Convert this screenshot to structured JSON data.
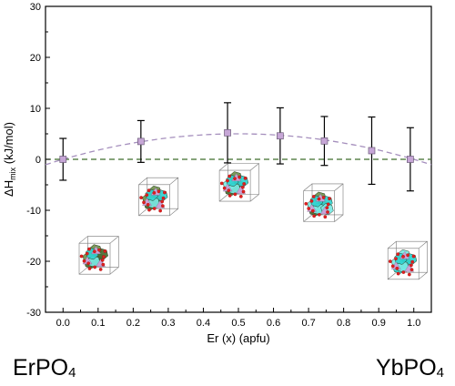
{
  "chart_data": {
    "type": "scatter",
    "xlabel": "Er (x) (apfu)",
    "ylabel_main": "ΔH",
    "ylabel_sub": "mix",
    "ylabel_unit": " (kJ/mol)",
    "xlim": [
      -0.05,
      1.05
    ],
    "ylim": [
      -30,
      30
    ],
    "x_ticks": [
      "0.0",
      "0.1",
      "0.2",
      "0.3",
      "0.4",
      "0.5",
      "0.6",
      "0.7",
      "0.8",
      "0.9",
      "1.0"
    ],
    "y_ticks": [
      "-30",
      "-20",
      "-10",
      "0",
      "10",
      "20",
      "30"
    ],
    "series": [
      {
        "x": [
          0.0,
          0.222,
          0.469,
          0.619,
          0.745,
          0.88,
          0.99
        ],
        "y": [
          0.0,
          3.5,
          5.2,
          4.6,
          3.6,
          1.7,
          0.0
        ],
        "yerr": [
          4.1,
          4.1,
          5.9,
          5.5,
          4.8,
          6.6,
          6.2
        ],
        "marker_color": "#c6a6d6"
      }
    ],
    "fit_curve": {
      "style": "dashed",
      "color": "#a58fbd",
      "peak": 5.0
    },
    "zero_line": {
      "style": "dashed",
      "color": "#3f6e2a"
    },
    "grid": false
  },
  "labels": {
    "left_main": "ErPO",
    "left_sub": "4",
    "right_main": "YbPO",
    "right_sub": "4"
  },
  "crystals": [
    {
      "name": "crystal-x0",
      "x": 0.09,
      "y": -19.5,
      "mix": 0.15
    },
    {
      "name": "crystal-x022",
      "x": 0.26,
      "y": -8.0,
      "mix": 0.35
    },
    {
      "name": "crystal-x047",
      "x": 0.49,
      "y": -5.2,
      "mix": 0.55
    },
    {
      "name": "crystal-x075",
      "x": 0.73,
      "y": -9.2,
      "mix": 0.75
    },
    {
      "name": "crystal-x1",
      "x": 0.97,
      "y": -20.5,
      "mix": 0.95
    }
  ]
}
